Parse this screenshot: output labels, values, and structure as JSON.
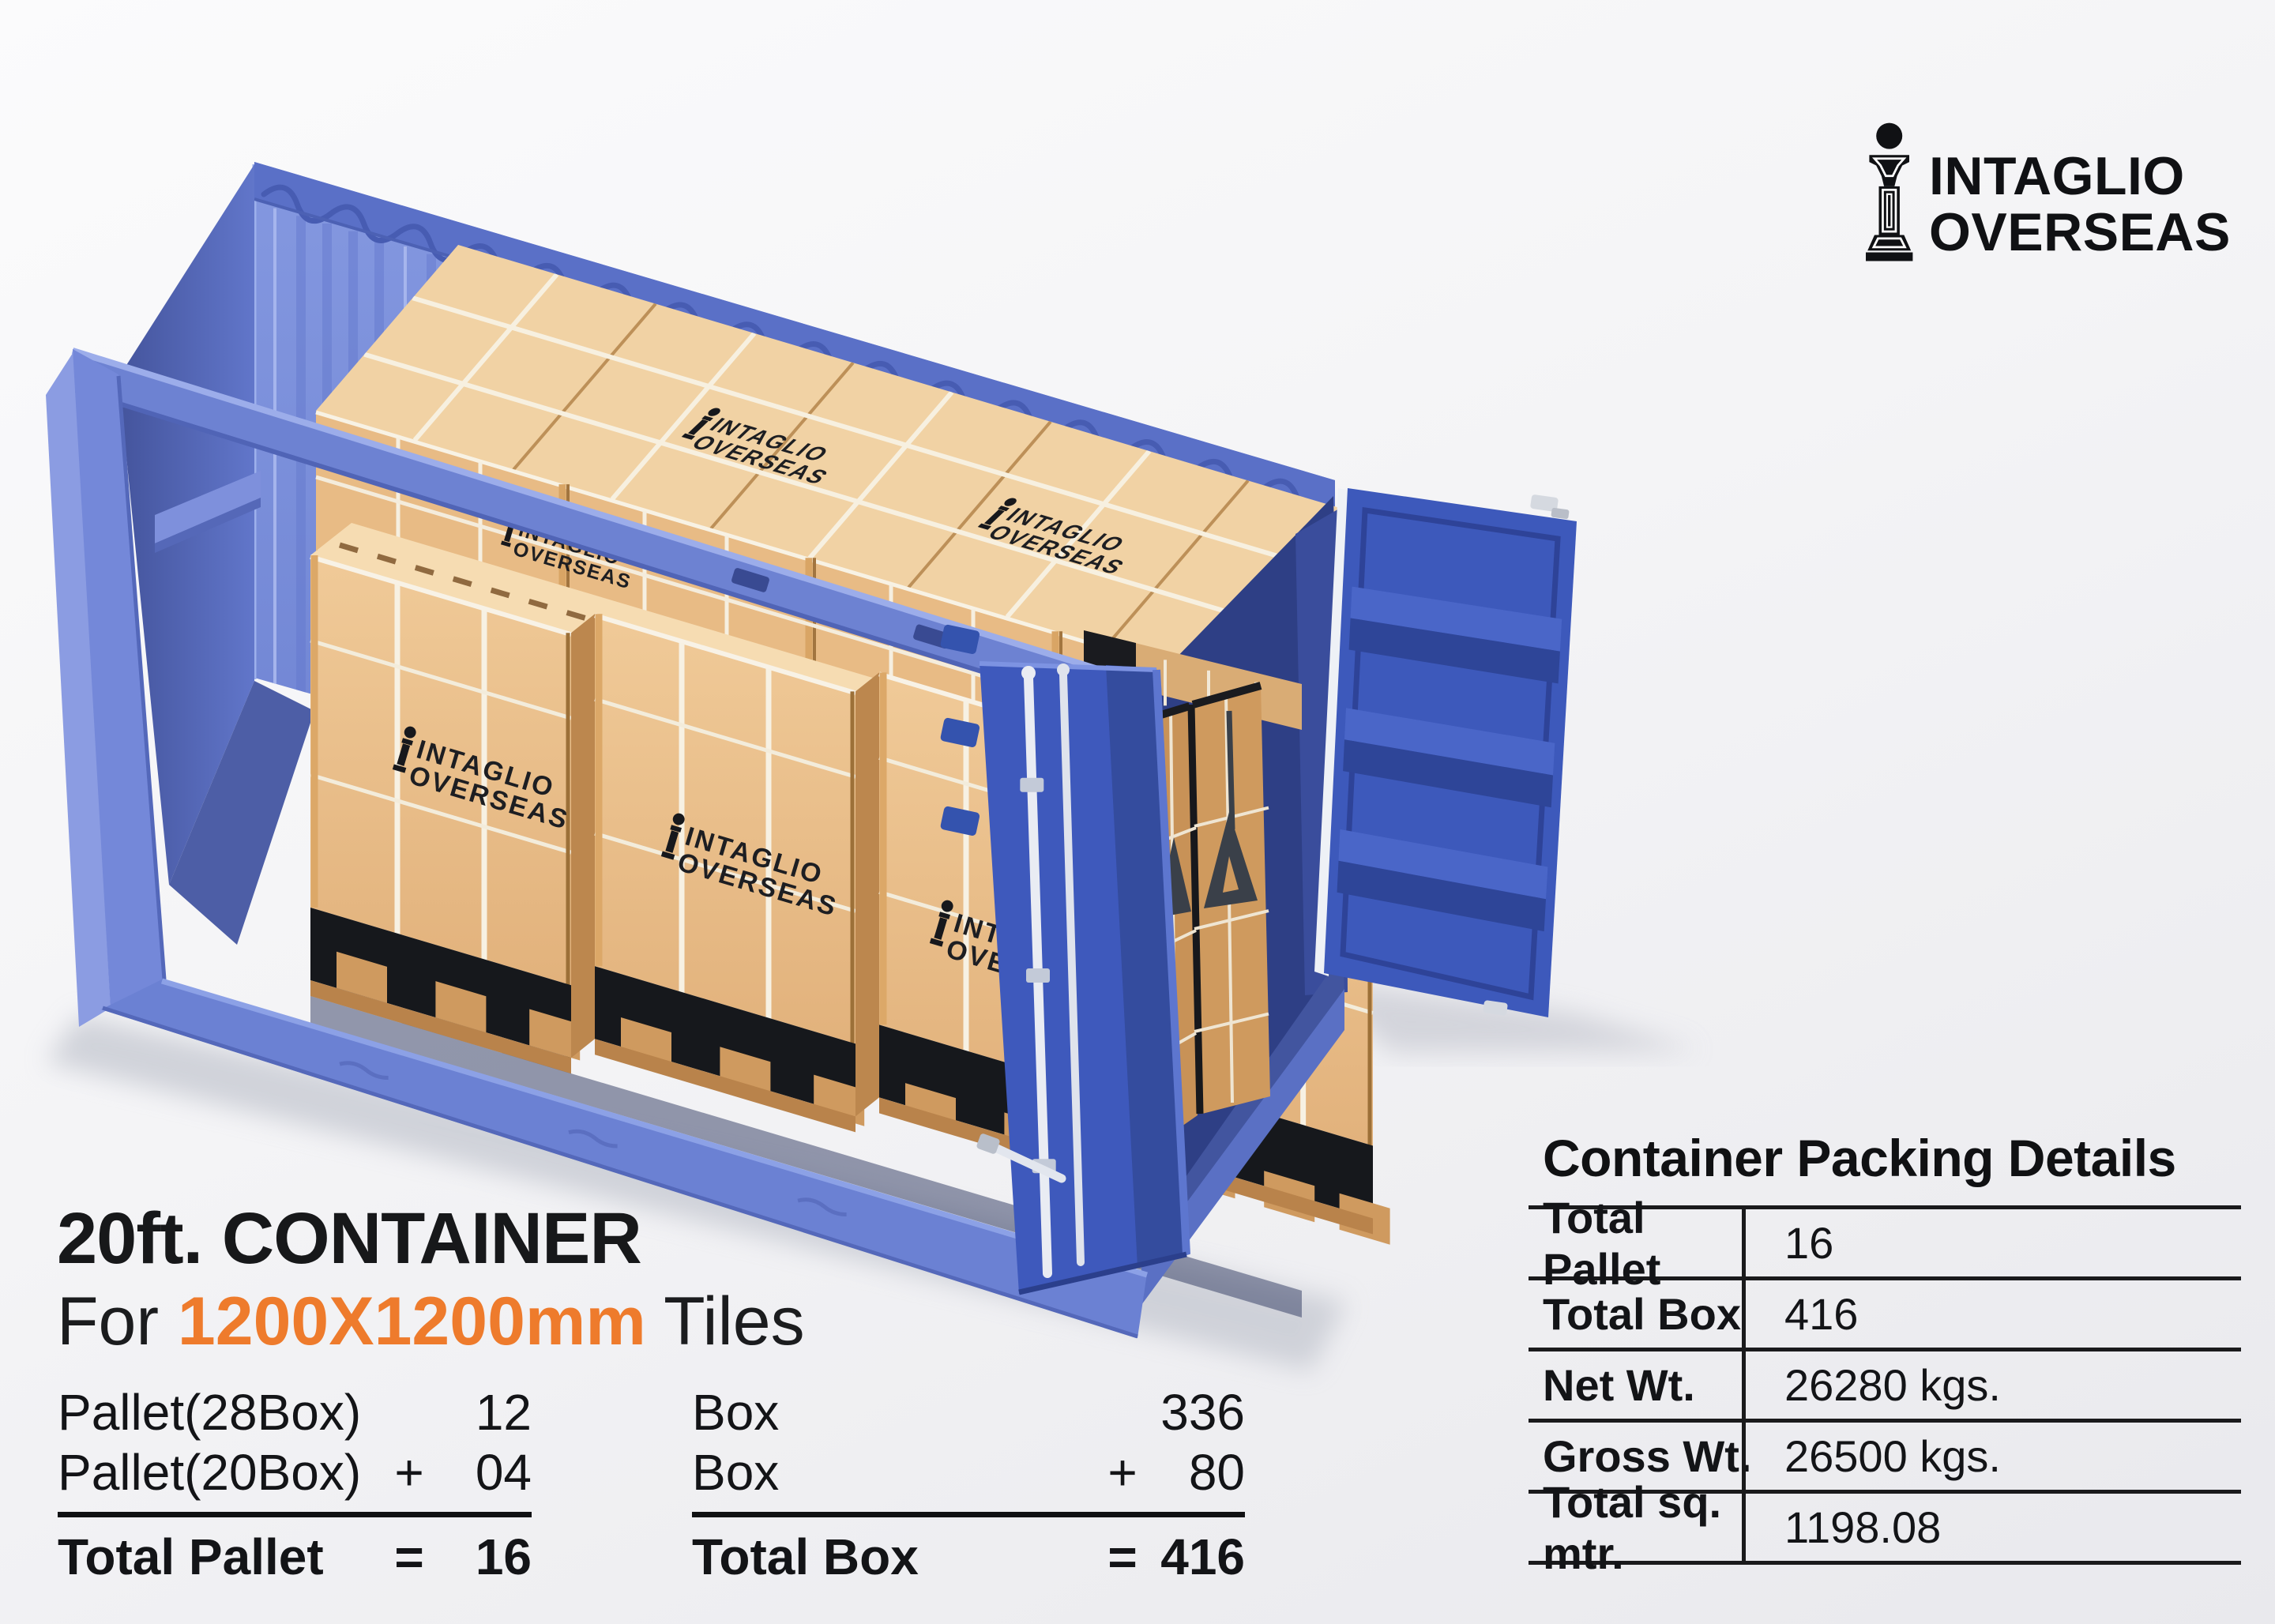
{
  "brand": {
    "line1": "INTAGLIO",
    "line2": "OVERSEAS"
  },
  "stamp": {
    "line1": "INTAGLIO",
    "line2": "OVERSEAS"
  },
  "heading": {
    "title": "20ft. CONTAINER",
    "for_prefix": "For ",
    "size": "1200X1200mm",
    "suffix": " Tiles"
  },
  "calc": {
    "left": {
      "row1_label": "Pallet(28Box)",
      "row1_value": "12",
      "row2_label": "Pallet(20Box)",
      "row2_op": "+",
      "row2_value": "04",
      "total_label": "Total Pallet",
      "total_op": "=",
      "total_value": "16"
    },
    "right": {
      "row1_label": "Box",
      "row1_value": "336",
      "row2_label": "Box",
      "row2_op": "+",
      "row2_value": "80",
      "total_label": "Total Box",
      "total_op": "=",
      "total_value": "416"
    }
  },
  "table": {
    "title": "Container Packing Details",
    "rows": [
      {
        "label": "Total Pallet",
        "value": "16"
      },
      {
        "label": "Total Box",
        "value": "416"
      },
      {
        "label": "Net Wt.",
        "value": "26280 kgs."
      },
      {
        "label": "Gross Wt.",
        "value": "26500 kgs."
      },
      {
        "label": "Total sq. mtr.",
        "value": "1198.08"
      }
    ]
  },
  "colors": {
    "accent_orange": "#ee7b2c",
    "container_blue": "#7b8fdc",
    "door_blue": "#3d59bb",
    "crate_tan": "#ecc28e",
    "pallet_black": "#16181c"
  }
}
